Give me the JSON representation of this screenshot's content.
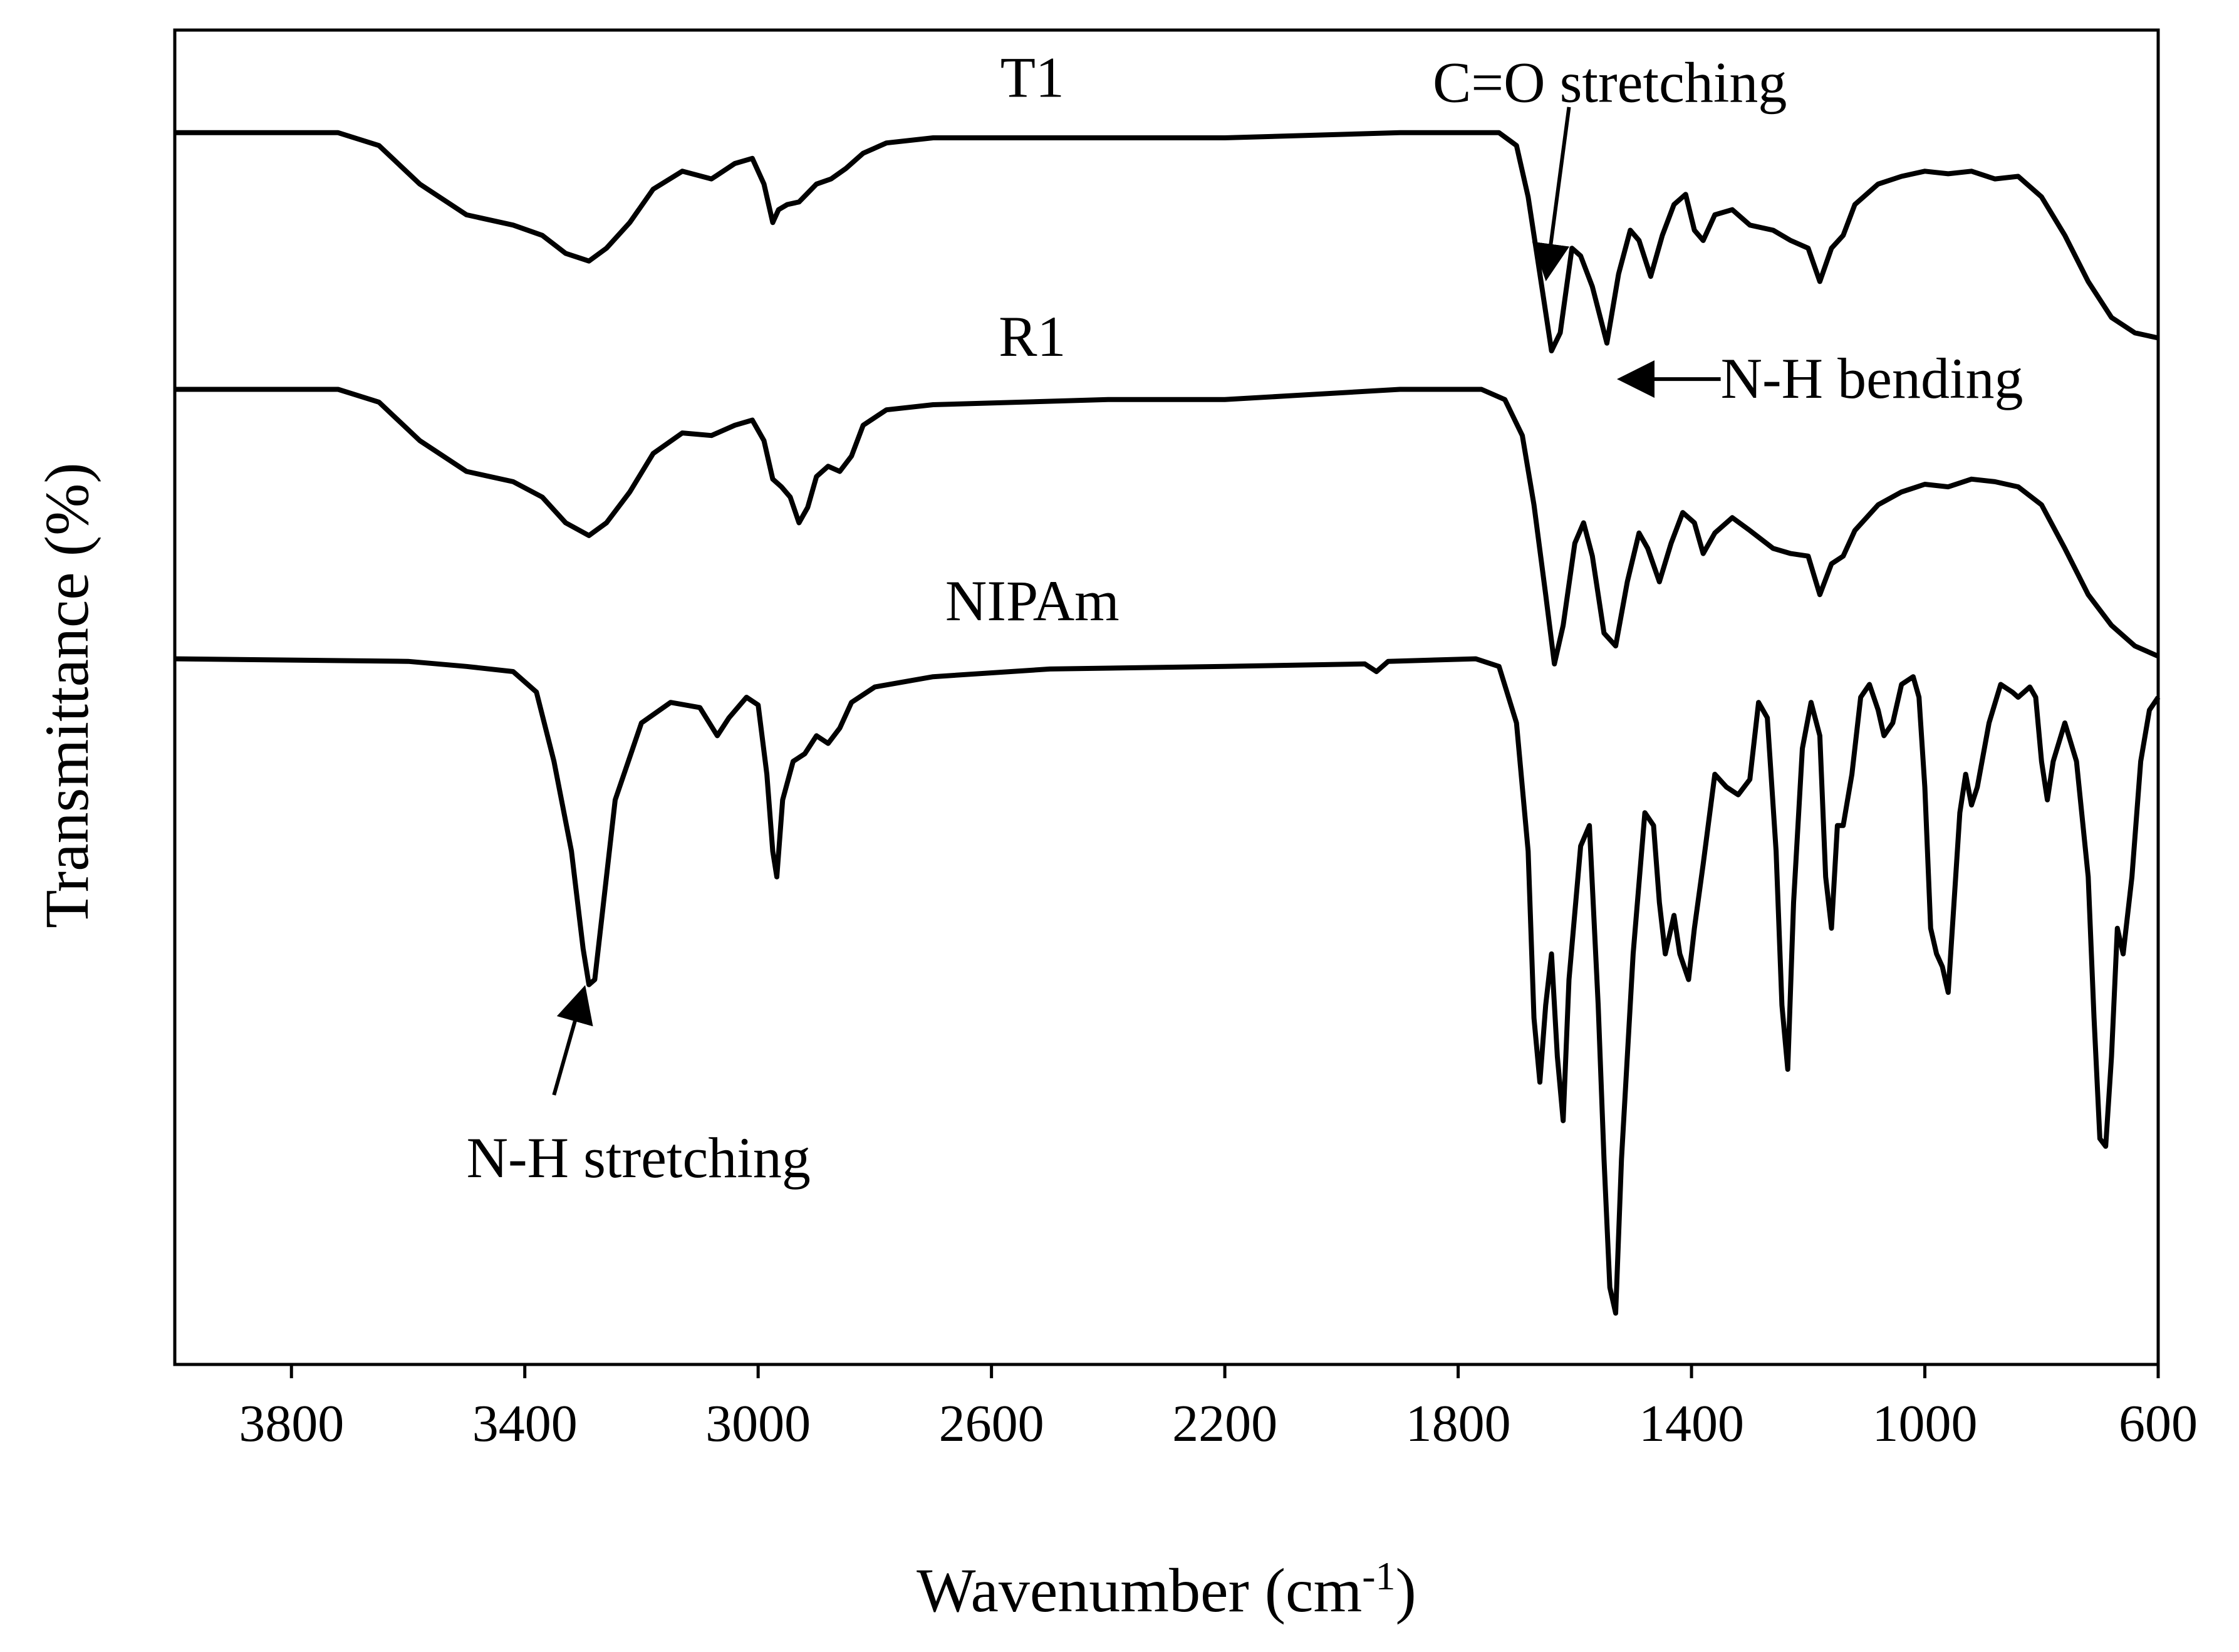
{
  "chart_data": {
    "type": "line",
    "title": "",
    "xlabel": "Wavenumber (cm",
    "xlabel_sup": "-1",
    "xlabel_close": ")",
    "ylabel": "Transmittance (%)",
    "xlim": [
      4000,
      600
    ],
    "x_reversed": true,
    "y_ticks_shown": false,
    "grid": false,
    "legend": "none",
    "x_ticks": [
      3800,
      3400,
      3000,
      2600,
      2200,
      1800,
      1400,
      1000,
      600
    ],
    "x_tick_labels": [
      "3800",
      "3400",
      "3000",
      "2600",
      "2200",
      "1800",
      "1400",
      "1000",
      "600"
    ],
    "series": [
      {
        "name": "T1",
        "color": "#000000",
        "points": [
          [
            4000,
            0.0
          ],
          [
            3720,
            0.0
          ],
          [
            3650,
            0.05
          ],
          [
            3580,
            0.2
          ],
          [
            3500,
            0.32
          ],
          [
            3420,
            0.36
          ],
          [
            3370,
            0.4
          ],
          [
            3330,
            0.47
          ],
          [
            3290,
            0.5
          ],
          [
            3260,
            0.45
          ],
          [
            3220,
            0.35
          ],
          [
            3180,
            0.22
          ],
          [
            3130,
            0.15
          ],
          [
            3080,
            0.18
          ],
          [
            3040,
            0.12
          ],
          [
            3010,
            0.1
          ],
          [
            2990,
            0.2
          ],
          [
            2975,
            0.35
          ],
          [
            2965,
            0.3
          ],
          [
            2950,
            0.28
          ],
          [
            2930,
            0.27
          ],
          [
            2900,
            0.2
          ],
          [
            2875,
            0.18
          ],
          [
            2850,
            0.14
          ],
          [
            2820,
            0.08
          ],
          [
            2780,
            0.04
          ],
          [
            2700,
            0.02
          ],
          [
            2400,
            0.02
          ],
          [
            2200,
            0.02
          ],
          [
            1900,
            0.0
          ],
          [
            1730,
            0.0
          ],
          [
            1700,
            0.05
          ],
          [
            1680,
            0.25
          ],
          [
            1660,
            0.55
          ],
          [
            1640,
            0.85
          ],
          [
            1625,
            0.78
          ],
          [
            1605,
            0.45
          ],
          [
            1590,
            0.48
          ],
          [
            1570,
            0.6
          ],
          [
            1545,
            0.82
          ],
          [
            1525,
            0.55
          ],
          [
            1505,
            0.38
          ],
          [
            1490,
            0.42
          ],
          [
            1470,
            0.56
          ],
          [
            1450,
            0.4
          ],
          [
            1430,
            0.28
          ],
          [
            1410,
            0.24
          ],
          [
            1395,
            0.38
          ],
          [
            1380,
            0.42
          ],
          [
            1360,
            0.32
          ],
          [
            1330,
            0.3
          ],
          [
            1300,
            0.36
          ],
          [
            1260,
            0.38
          ],
          [
            1230,
            0.42
          ],
          [
            1200,
            0.45
          ],
          [
            1180,
            0.58
          ],
          [
            1160,
            0.45
          ],
          [
            1140,
            0.4
          ],
          [
            1120,
            0.28
          ],
          [
            1080,
            0.2
          ],
          [
            1040,
            0.17
          ],
          [
            1000,
            0.15
          ],
          [
            960,
            0.16
          ],
          [
            920,
            0.15
          ],
          [
            880,
            0.18
          ],
          [
            840,
            0.17
          ],
          [
            800,
            0.25
          ],
          [
            760,
            0.4
          ],
          [
            720,
            0.58
          ],
          [
            680,
            0.72
          ],
          [
            640,
            0.78
          ],
          [
            600,
            0.8
          ]
        ]
      },
      {
        "name": "R1",
        "color": "#000000",
        "points": [
          [
            4000,
            1.0
          ],
          [
            3720,
            1.0
          ],
          [
            3650,
            1.05
          ],
          [
            3580,
            1.2
          ],
          [
            3500,
            1.32
          ],
          [
            3420,
            1.36
          ],
          [
            3370,
            1.42
          ],
          [
            3330,
            1.52
          ],
          [
            3290,
            1.57
          ],
          [
            3260,
            1.52
          ],
          [
            3220,
            1.4
          ],
          [
            3180,
            1.25
          ],
          [
            3130,
            1.17
          ],
          [
            3080,
            1.18
          ],
          [
            3040,
            1.14
          ],
          [
            3010,
            1.12
          ],
          [
            2990,
            1.2
          ],
          [
            2975,
            1.35
          ],
          [
            2960,
            1.38
          ],
          [
            2945,
            1.42
          ],
          [
            2930,
            1.52
          ],
          [
            2915,
            1.46
          ],
          [
            2900,
            1.34
          ],
          [
            2880,
            1.3
          ],
          [
            2860,
            1.32
          ],
          [
            2840,
            1.26
          ],
          [
            2820,
            1.14
          ],
          [
            2780,
            1.08
          ],
          [
            2700,
            1.06
          ],
          [
            2400,
            1.04
          ],
          [
            2200,
            1.04
          ],
          [
            1900,
            1.0
          ],
          [
            1760,
            1.0
          ],
          [
            1720,
            1.04
          ],
          [
            1690,
            1.18
          ],
          [
            1670,
            1.45
          ],
          [
            1650,
            1.8
          ],
          [
            1635,
            2.07
          ],
          [
            1620,
            1.92
          ],
          [
            1600,
            1.6
          ],
          [
            1585,
            1.52
          ],
          [
            1570,
            1.65
          ],
          [
            1550,
            1.95
          ],
          [
            1530,
            2.0
          ],
          [
            1510,
            1.75
          ],
          [
            1490,
            1.56
          ],
          [
            1475,
            1.62
          ],
          [
            1455,
            1.75
          ],
          [
            1435,
            1.6
          ],
          [
            1415,
            1.48
          ],
          [
            1395,
            1.52
          ],
          [
            1380,
            1.64
          ],
          [
            1360,
            1.56
          ],
          [
            1330,
            1.5
          ],
          [
            1300,
            1.55
          ],
          [
            1260,
            1.62
          ],
          [
            1230,
            1.64
          ],
          [
            1200,
            1.65
          ],
          [
            1180,
            1.8
          ],
          [
            1160,
            1.68
          ],
          [
            1140,
            1.65
          ],
          [
            1120,
            1.55
          ],
          [
            1080,
            1.45
          ],
          [
            1040,
            1.4
          ],
          [
            1000,
            1.37
          ],
          [
            960,
            1.38
          ],
          [
            920,
            1.35
          ],
          [
            880,
            1.36
          ],
          [
            840,
            1.38
          ],
          [
            800,
            1.45
          ],
          [
            760,
            1.62
          ],
          [
            720,
            1.8
          ],
          [
            680,
            1.92
          ],
          [
            640,
            2.0
          ],
          [
            600,
            2.04
          ]
        ]
      },
      {
        "name": "NIPAm",
        "color": "#000000",
        "points": [
          [
            4000,
            2.05
          ],
          [
            3600,
            2.06
          ],
          [
            3500,
            2.08
          ],
          [
            3420,
            2.1
          ],
          [
            3380,
            2.18
          ],
          [
            3350,
            2.45
          ],
          [
            3320,
            2.8
          ],
          [
            3300,
            3.18
          ],
          [
            3290,
            3.32
          ],
          [
            3280,
            3.3
          ],
          [
            3265,
            3.0
          ],
          [
            3245,
            2.6
          ],
          [
            3200,
            2.3
          ],
          [
            3150,
            2.22
          ],
          [
            3100,
            2.24
          ],
          [
            3070,
            2.35
          ],
          [
            3050,
            2.28
          ],
          [
            3020,
            2.2
          ],
          [
            3000,
            2.23
          ],
          [
            2985,
            2.5
          ],
          [
            2975,
            2.8
          ],
          [
            2968,
            2.9
          ],
          [
            2958,
            2.6
          ],
          [
            2940,
            2.45
          ],
          [
            2920,
            2.42
          ],
          [
            2900,
            2.35
          ],
          [
            2880,
            2.38
          ],
          [
            2860,
            2.32
          ],
          [
            2840,
            2.22
          ],
          [
            2800,
            2.16
          ],
          [
            2700,
            2.12
          ],
          [
            2500,
            2.09
          ],
          [
            2200,
            2.08
          ],
          [
            1960,
            2.07
          ],
          [
            1940,
            2.1
          ],
          [
            1920,
            2.06
          ],
          [
            1770,
            2.05
          ],
          [
            1730,
            2.08
          ],
          [
            1700,
            2.3
          ],
          [
            1680,
            2.8
          ],
          [
            1670,
            3.45
          ],
          [
            1660,
            3.7
          ],
          [
            1650,
            3.4
          ],
          [
            1640,
            3.2
          ],
          [
            1630,
            3.6
          ],
          [
            1620,
            3.85
          ],
          [
            1610,
            3.3
          ],
          [
            1590,
            2.78
          ],
          [
            1575,
            2.7
          ],
          [
            1560,
            3.4
          ],
          [
            1550,
            4.0
          ],
          [
            1540,
            4.5
          ],
          [
            1530,
            4.6
          ],
          [
            1520,
            4.0
          ],
          [
            1500,
            3.2
          ],
          [
            1480,
            2.65
          ],
          [
            1465,
            2.7
          ],
          [
            1455,
            3.0
          ],
          [
            1445,
            3.2
          ],
          [
            1430,
            3.05
          ],
          [
            1420,
            3.2
          ],
          [
            1405,
            3.3
          ],
          [
            1395,
            3.1
          ],
          [
            1380,
            2.85
          ],
          [
            1360,
            2.5
          ],
          [
            1340,
            2.55
          ],
          [
            1320,
            2.58
          ],
          [
            1300,
            2.52
          ],
          [
            1285,
            2.22
          ],
          [
            1270,
            2.28
          ],
          [
            1255,
            2.8
          ],
          [
            1245,
            3.4
          ],
          [
            1235,
            3.65
          ],
          [
            1225,
            3.0
          ],
          [
            1210,
            2.4
          ],
          [
            1195,
            2.22
          ],
          [
            1180,
            2.35
          ],
          [
            1170,
            2.9
          ],
          [
            1160,
            3.1
          ],
          [
            1150,
            2.7
          ],
          [
            1140,
            2.7
          ],
          [
            1125,
            2.5
          ],
          [
            1110,
            2.2
          ],
          [
            1095,
            2.15
          ],
          [
            1080,
            2.25
          ],
          [
            1070,
            2.35
          ],
          [
            1055,
            2.3
          ],
          [
            1040,
            2.15
          ],
          [
            1020,
            2.12
          ],
          [
            1010,
            2.2
          ],
          [
            1000,
            2.55
          ],
          [
            990,
            3.1
          ],
          [
            980,
            3.2
          ],
          [
            970,
            3.25
          ],
          [
            960,
            3.35
          ],
          [
            950,
            3.0
          ],
          [
            940,
            2.65
          ],
          [
            930,
            2.5
          ],
          [
            920,
            2.62
          ],
          [
            910,
            2.55
          ],
          [
            890,
            2.3
          ],
          [
            870,
            2.15
          ],
          [
            850,
            2.18
          ],
          [
            840,
            2.2
          ],
          [
            820,
            2.16
          ],
          [
            810,
            2.2
          ],
          [
            800,
            2.45
          ],
          [
            790,
            2.6
          ],
          [
            780,
            2.45
          ],
          [
            760,
            2.3
          ],
          [
            740,
            2.45
          ],
          [
            720,
            2.9
          ],
          [
            710,
            3.45
          ],
          [
            700,
            3.92
          ],
          [
            690,
            3.95
          ],
          [
            680,
            3.6
          ],
          [
            670,
            3.1
          ],
          [
            660,
            3.2
          ],
          [
            645,
            2.9
          ],
          [
            630,
            2.45
          ],
          [
            615,
            2.25
          ],
          [
            600,
            2.2
          ]
        ]
      }
    ],
    "series_labels": [
      {
        "text": "T1",
        "x": 2530,
        "y": -0.14
      },
      {
        "text": "R1",
        "x": 2530,
        "y": 0.87
      },
      {
        "text": "NIPAm",
        "x": 2530,
        "y": 1.9
      }
    ],
    "annotations": [
      {
        "text": "C=O stretching",
        "text_x": 1540,
        "text_y": -0.12,
        "arrow_from": [
          1610,
          -0.1
        ],
        "arrow_to": [
          1648,
          0.55
        ]
      },
      {
        "text": "N-H bending",
        "text_x": 1350,
        "text_y": 0.96,
        "arrow_from": [
          1350,
          0.96
        ],
        "arrow_to": [
          1515,
          0.96
        ]
      },
      {
        "text": "N-H stretching",
        "text_x": 3500,
        "text_y": 3.85,
        "arrow_from": [
          3350,
          3.75
        ],
        "arrow_to": [
          3300,
          3.35
        ]
      }
    ],
    "ylim": [
      -0.4,
      4.8
    ],
    "y_inverted": true
  }
}
